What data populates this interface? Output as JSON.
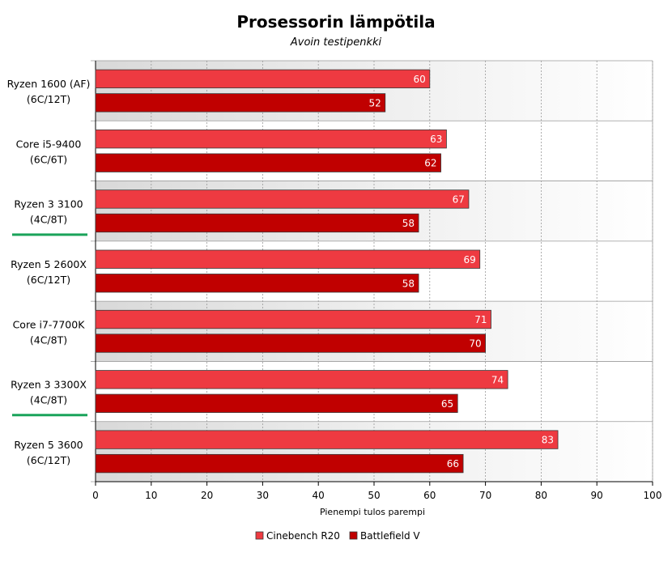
{
  "chart_data": {
    "type": "bar",
    "orientation": "horizontal",
    "title": "Prosessorin lämpötila",
    "subtitle": "Avoin testipenkki",
    "xlabel": "Pienempi tulos parempi",
    "xlim": [
      0,
      100
    ],
    "ticks": [
      0,
      10,
      20,
      30,
      40,
      50,
      60,
      70,
      80,
      90,
      100
    ],
    "grid": true,
    "legend_position": "bottom",
    "categories": [
      [
        "Ryzen 1600 (AF)",
        "(6C/12T)"
      ],
      [
        "Core i5-9400",
        "(6C/6T)"
      ],
      [
        "Ryzen 3 3100",
        "(4C/8T)"
      ],
      [
        "Ryzen 5 2600X",
        "(6C/12T)"
      ],
      [
        "Core i7-7700K",
        "(4C/8T)"
      ],
      [
        "Ryzen 3 3300X",
        "(4C/8T)"
      ],
      [
        "Ryzen 5 3600",
        "(6C/12T)"
      ]
    ],
    "highlighted": [
      false,
      false,
      true,
      false,
      false,
      true,
      false
    ],
    "series": [
      {
        "name": "Cinebench R20",
        "color": "#ee3a41",
        "values": [
          60,
          63,
          67,
          69,
          71,
          74,
          83
        ]
      },
      {
        "name": "Battlefield V",
        "color": "#c00000",
        "values": [
          52,
          62,
          58,
          58,
          70,
          65,
          66
        ]
      }
    ],
    "highlight_color": "#1aa35a"
  }
}
